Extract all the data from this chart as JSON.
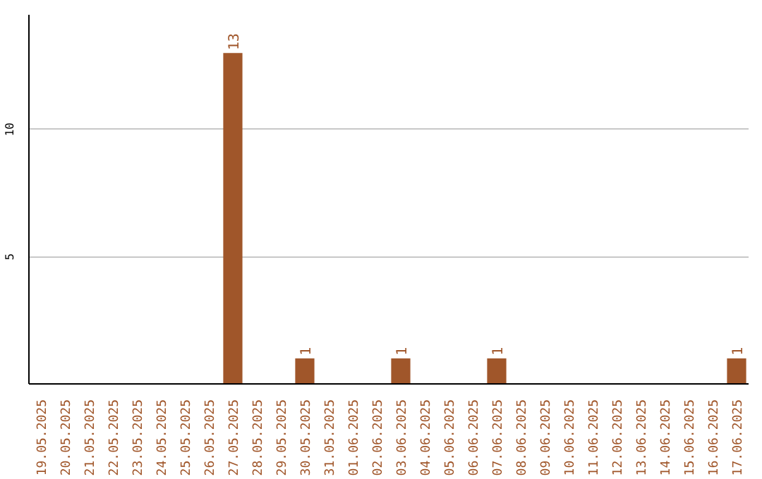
{
  "chart_data": {
    "type": "bar",
    "categories": [
      "19.05.2025",
      "20.05.2025",
      "21.05.2025",
      "22.05.2025",
      "23.05.2025",
      "24.05.2025",
      "25.05.2025",
      "26.05.2025",
      "27.05.2025",
      "28.05.2025",
      "29.05.2025",
      "30.05.2025",
      "31.05.2025",
      "01.06.2025",
      "02.06.2025",
      "03.06.2025",
      "04.06.2025",
      "05.06.2025",
      "06.06.2025",
      "07.06.2025",
      "08.06.2025",
      "09.06.2025",
      "10.06.2025",
      "11.06.2025",
      "12.06.2025",
      "13.06.2025",
      "14.06.2025",
      "15.06.2025",
      "16.06.2025",
      "17.06.2025"
    ],
    "values": [
      0,
      0,
      0,
      0,
      0,
      0,
      0,
      0,
      13,
      0,
      0,
      1,
      0,
      0,
      0,
      1,
      0,
      0,
      0,
      1,
      0,
      0,
      0,
      0,
      0,
      0,
      0,
      0,
      0,
      1
    ],
    "value_labels": [
      null,
      null,
      null,
      null,
      null,
      null,
      null,
      null,
      "13",
      null,
      null,
      "1",
      null,
      null,
      null,
      "1",
      null,
      null,
      null,
      "1",
      null,
      null,
      null,
      null,
      null,
      null,
      null,
      null,
      null,
      "1"
    ],
    "color": "#a0562a",
    "ylim": [
      0,
      14.5
    ],
    "yticks": [
      5,
      10
    ],
    "grid": "y"
  }
}
